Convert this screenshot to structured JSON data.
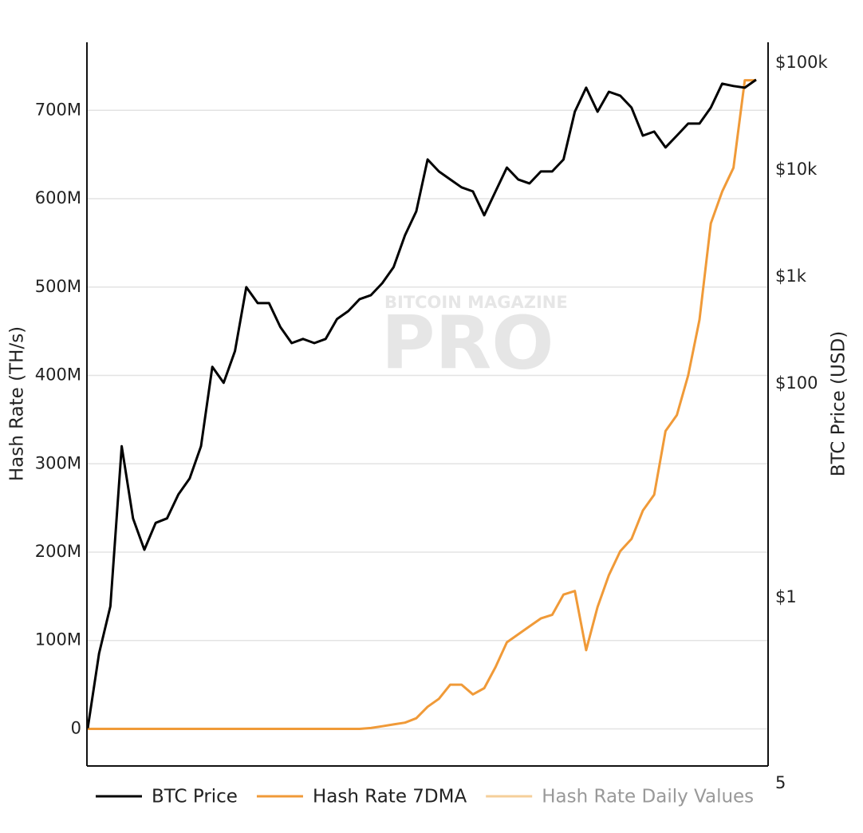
{
  "chart_data": {
    "type": "line",
    "y_label": "Hash Rate (TH/s)",
    "y2_label": "BTC Price (USD)",
    "watermark_top": "BITCOIN MAGAZINE",
    "watermark_main": "PRO",
    "stray_label": "5",
    "categories": [
      null,
      null,
      null,
      null,
      null,
      null,
      null,
      null,
      null,
      null,
      null,
      null,
      null,
      null,
      null,
      null,
      null,
      null,
      null,
      null,
      null,
      null,
      null,
      null,
      null,
      null,
      null,
      null,
      null,
      null,
      null,
      null,
      null,
      null,
      null,
      null,
      null,
      null,
      null,
      null,
      null,
      null,
      null,
      null,
      null,
      null,
      null,
      null,
      null,
      null,
      null,
      null,
      null,
      null,
      null,
      null,
      null,
      null,
      null,
      null
    ],
    "ylim": [
      -42000000,
      777000000
    ],
    "yticks": [
      0,
      {
        "value": 100000000,
        "label": "100M"
      },
      {
        "value": 200000000,
        "label": "200M"
      },
      {
        "value": 300000000,
        "label": "300M"
      },
      {
        "value": 400000000,
        "label": "400M"
      },
      {
        "value": 500000000,
        "label": "500M"
      },
      {
        "value": 600000000,
        "label": "600M"
      },
      {
        "value": 700000000,
        "label": "700M"
      }
    ],
    "y2lim": [
      0.0266,
      156000
    ],
    "y2_log": true,
    "y2ticks": [
      {
        "value": 1,
        "label": "$1"
      },
      {
        "value": 100,
        "label": "$100"
      },
      {
        "value": 1000,
        "label": "$1k"
      },
      {
        "value": 10000,
        "label": "$10k"
      },
      {
        "value": 100000,
        "label": "$100k"
      }
    ],
    "grid": true,
    "series": [
      {
        "name": "BTC Price",
        "color": "#000000",
        "axis": "y2",
        "values": [
          0.06,
          0.3,
          0.83,
          26,
          5.5,
          2.8,
          5.0,
          5.5,
          9.2,
          13,
          26,
          144,
          102,
          202,
          800,
          567,
          567,
          339,
          240,
          262,
          240,
          262,
          402,
          478,
          618,
          673,
          871,
          1230,
          2440,
          4090,
          12500,
          9660,
          8130,
          6860,
          6290,
          3760,
          6290,
          10500,
          8130,
          7470,
          9660,
          9660,
          12500,
          35000,
          58700,
          35000,
          53800,
          49400,
          38200,
          20900,
          22800,
          16200,
          20900,
          27100,
          27100,
          38200,
          64000,
          60800,
          58700,
          69700
        ]
      },
      {
        "name": "Hash Rate 7DMA",
        "color": "#f09a38",
        "values": [
          0,
          0,
          0,
          0,
          0,
          0,
          0,
          0,
          0,
          0,
          0,
          0,
          0,
          0,
          0,
          0,
          0,
          0,
          0,
          0,
          0,
          0,
          0,
          0,
          0,
          1000000,
          3000000,
          5000000,
          7000000,
          12000000,
          25000000,
          34000000,
          50000000,
          50000000,
          39000000,
          46000000,
          70000000,
          98000000,
          107000000,
          116000000,
          125000000,
          129000000,
          152000000,
          156000000,
          89000000,
          138000000,
          174000000,
          201000000,
          215000000,
          247000000,
          265000000,
          337000000,
          355000000,
          400000000,
          463000000,
          572000000,
          608000000,
          635000000,
          734000000,
          734000000
        ]
      },
      {
        "name": "Hash Rate Daily Values",
        "color": "#f5cf9a",
        "visible": false
      }
    ]
  }
}
